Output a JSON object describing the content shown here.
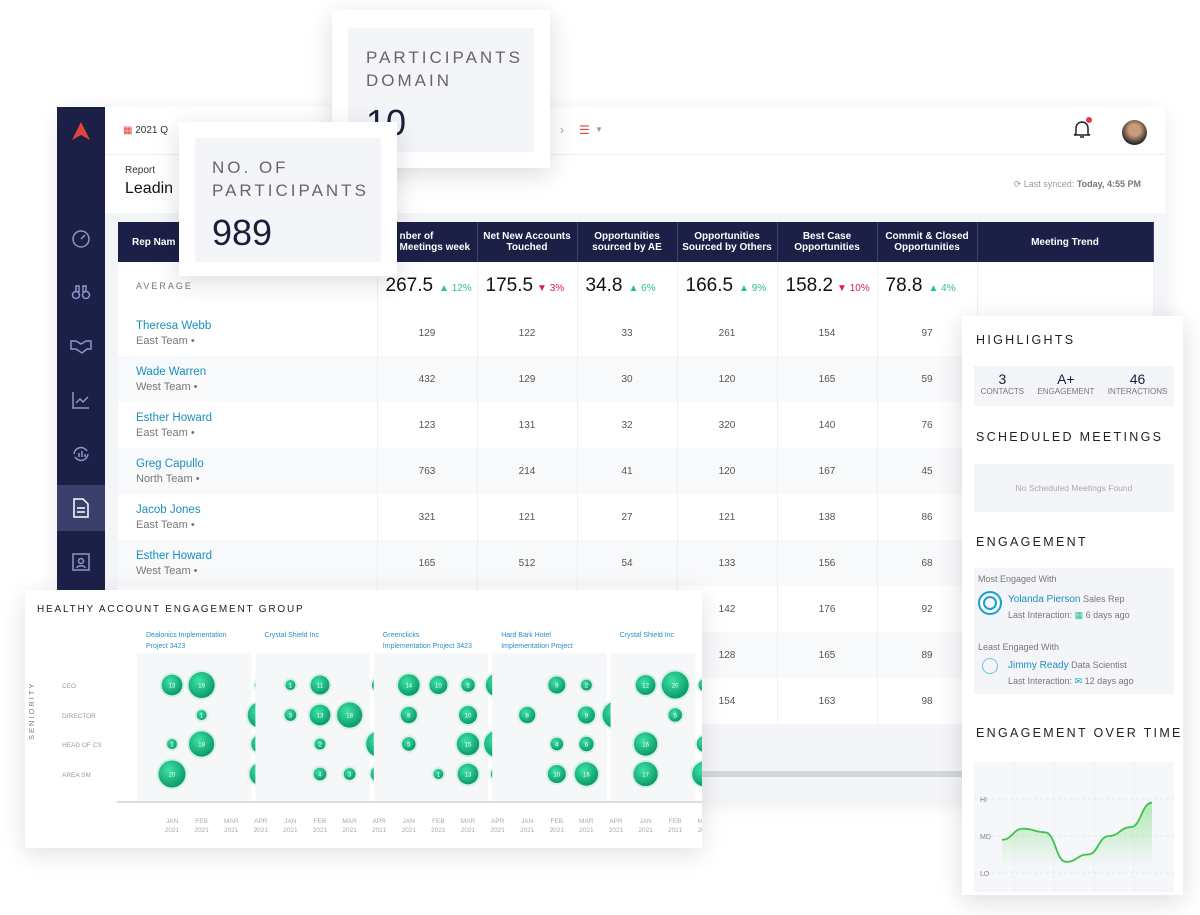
{
  "colors": {
    "navy": "#1c2047",
    "accent_red": "#e0443a",
    "link": "#1a8fbf",
    "up": "#2fbf8b",
    "down": "#d6244a",
    "bubble": "#17c48a"
  },
  "topbar": {
    "date_label": "2021 Q",
    "notification_badge": true
  },
  "report": {
    "label": "Report",
    "title": "Leadin",
    "last_synced_label": "Last synced:",
    "last_synced_value": "Today, 4:55 PM"
  },
  "kpis": [
    {
      "label": "PARTICIPANTS DOMAIN",
      "value": "10"
    },
    {
      "label": "NO. OF PARTICIPANTS",
      "value": "989"
    }
  ],
  "table": {
    "headers": [
      "Rep Nam",
      "nber of Meetings week",
      "Net New Accounts Touched",
      "Opportunities sourced by AE",
      "Opportunities Sourced by Others",
      "Best Case Opportunities",
      "Commit & Closed Opportunities",
      "Meeting Trend"
    ],
    "average": {
      "label": "AVERAGE",
      "values": [
        {
          "v": "267.5",
          "d": "12%",
          "dir": "up"
        },
        {
          "v": "175.5",
          "d": "3%",
          "dir": "down"
        },
        {
          "v": "34.8",
          "d": "6%",
          "dir": "up"
        },
        {
          "v": "166.5",
          "d": "9%",
          "dir": "up"
        },
        {
          "v": "158.2",
          "d": "10%",
          "dir": "down"
        },
        {
          "v": "78.8",
          "d": "4%",
          "dir": "up"
        }
      ]
    },
    "rows": [
      {
        "name": "Theresa Webb",
        "team": "East Team •",
        "values": [
          "129",
          "122",
          "33",
          "261",
          "154",
          "97"
        ]
      },
      {
        "name": "Wade Warren",
        "team": "West Team •",
        "values": [
          "432",
          "129",
          "30",
          "120",
          "165",
          "59"
        ]
      },
      {
        "name": "Esther Howard",
        "team": "East Team •",
        "values": [
          "123",
          "131",
          "32",
          "320",
          "140",
          "76"
        ]
      },
      {
        "name": "Greg Capullo",
        "team": "North Team •",
        "values": [
          "763",
          "214",
          "41",
          "120",
          "167",
          "45"
        ]
      },
      {
        "name": "Jacob Jones",
        "team": "East Team •",
        "values": [
          "321",
          "121",
          "27",
          "121",
          "138",
          "86"
        ]
      },
      {
        "name": "Esther Howard",
        "team": "West Team •",
        "values": [
          "165",
          "512",
          "54",
          "133",
          "156",
          "68"
        ]
      },
      {
        "name": "",
        "team": "",
        "values": [
          "",
          "",
          "",
          "142",
          "176",
          "92"
        ]
      },
      {
        "name": "",
        "team": "",
        "values": [
          "",
          "",
          "",
          "128",
          "165",
          "89"
        ]
      },
      {
        "name": "",
        "team": "",
        "values": [
          "",
          "",
          "",
          "154",
          "163",
          "98"
        ]
      }
    ]
  },
  "highlights": {
    "title": "HIGHLIGHTS",
    "stats": [
      {
        "value": "3",
        "label": "CONTACTS"
      },
      {
        "value": "A+",
        "label": "ENGAGEMENT"
      },
      {
        "value": "46",
        "label": "INTERACTIONS"
      }
    ],
    "scheduled_title": "SCHEDULED MEETINGS",
    "scheduled_empty": "No Scheduled Meetings Found",
    "engagement_title": "ENGAGEMENT",
    "most_label": "Most Engaged With",
    "most_name": "Yolanda Pierson",
    "most_role": "Sales Rep",
    "most_last_label": "Last Interaction:",
    "most_last": "6 days ago",
    "least_label": "Least Engaged With",
    "least_name": "Jimmy Ready",
    "least_role": "Data Scientist",
    "least_last_label": "Last Interaction:",
    "least_last": "12 days ago",
    "eot_title": "ENGAGEMENT OVER TIME"
  },
  "chart_data": [
    {
      "type": "scatter",
      "title": "HEALTHY ACCOUNT ENGAGEMENT GROUP",
      "ylabel": "SENIORITY",
      "rows": [
        "CEO",
        "DIRECTOR",
        "HEAD OF CS",
        "AREA SM"
      ],
      "groups": [
        {
          "name": "Dealonics Implementation Project 3423",
          "months": [
            "JAN 2021",
            "FEB 2021",
            "MAR 2021",
            "APR 2021"
          ],
          "values": [
            [
              13,
              19,
              null,
              3
            ],
            [
              null,
              1,
              null,
              19
            ],
            [
              1,
              18,
              null,
              11
            ],
            [
              20,
              null,
              null,
              15
            ]
          ]
        },
        {
          "name": "Crystal Shield Inc",
          "months": [
            "JAN 2021",
            "FEB 2021",
            "MAR 2021",
            "APR 2021"
          ],
          "values": [
            [
              1,
              11,
              null,
              6
            ],
            [
              3,
              13,
              18,
              null
            ],
            [
              null,
              2,
              null,
              19
            ],
            [
              null,
              4,
              3,
              9
            ]
          ]
        },
        {
          "name": "Greenclicks Implementation Project 3423",
          "months": [
            "JAN 2021",
            "FEB 2021",
            "MAR 2021",
            "APR 2021"
          ],
          "values": [
            [
              14,
              10,
              5,
              16
            ],
            [
              8,
              null,
              10,
              null
            ],
            [
              5,
              null,
              15,
              20
            ],
            [
              null,
              1,
              13,
              5
            ]
          ]
        },
        {
          "name": "Hard Bark Hotel Implementation Project",
          "months": [
            "JAN 2021",
            "FEB 2021",
            "MAR 2021",
            "APR 2021"
          ],
          "values": [
            [
              null,
              9,
              2,
              null
            ],
            [
              8,
              null,
              9,
              20
            ],
            [
              null,
              4,
              6,
              null
            ],
            [
              null,
              10,
              16,
              null
            ]
          ]
        },
        {
          "name": "Crystal Shield Inc",
          "months": [
            "JAN 2021",
            "FEB 2021",
            "MAR 2021"
          ],
          "values": [
            [
              12,
              20,
              4
            ],
            [
              null,
              5,
              null
            ],
            [
              16,
              null,
              8
            ],
            [
              17,
              null,
              18
            ]
          ]
        }
      ]
    },
    {
      "type": "area",
      "title": "ENGAGEMENT OVER TIME",
      "y_ticks": [
        "HI",
        "MD",
        "LO"
      ],
      "values": [
        0.45,
        0.6,
        0.55,
        0.15,
        0.25,
        0.5,
        0.62,
        0.95
      ]
    }
  ]
}
